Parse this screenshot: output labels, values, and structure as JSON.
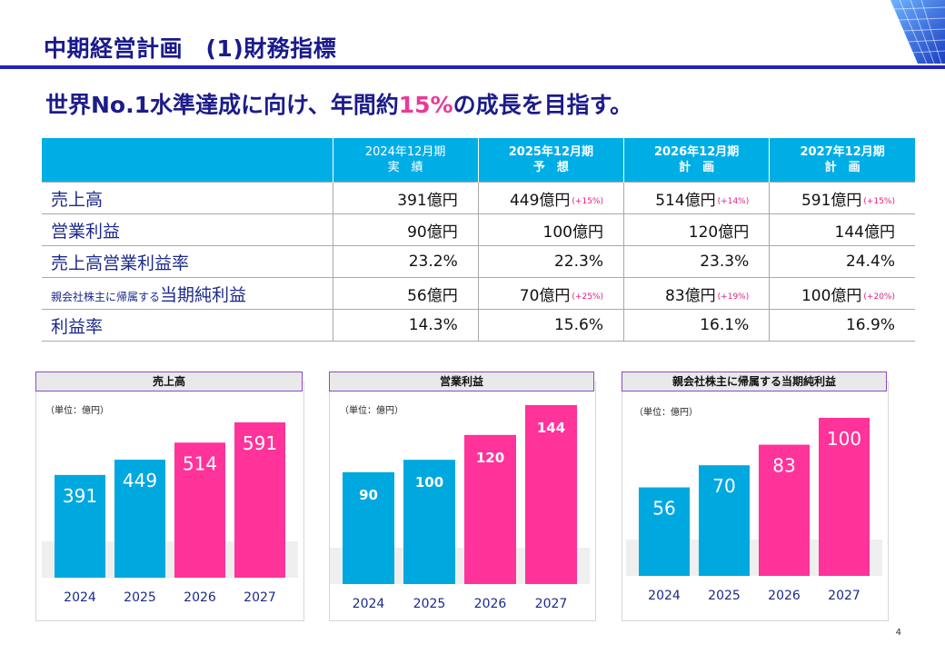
{
  "header": {
    "title": "中期経営計画　(1)財務指標"
  },
  "headline": {
    "prefix": "世界No.1水準達成に向け、年間約",
    "highlight": "15%",
    "suffix": "の成長を目指す。"
  },
  "colors": {
    "actual": "#00a8e0",
    "plan": "#ff3399",
    "header_bg": "#00aee6",
    "title_navy": "#1a1a8c",
    "accent_pink": "#e83a9a"
  },
  "table": {
    "columns": [
      {
        "line1": "2024年12月期",
        "line2": "実　績"
      },
      {
        "line1": "2025年12月期",
        "line2": "予　想"
      },
      {
        "line1": "2026年12月期",
        "line2": "計　画"
      },
      {
        "line1": "2027年12月期",
        "line2": "計　画"
      }
    ],
    "rows": [
      {
        "label": "売上高",
        "values": [
          "391億円",
          "449億円",
          "514億円",
          "591億円"
        ],
        "growth": [
          "",
          "(+15%)",
          "(+14%)",
          "(+15%)"
        ]
      },
      {
        "label": "営業利益",
        "values": [
          "90億円",
          "100億円",
          "120億円",
          "144億円"
        ],
        "growth": [
          "",
          "",
          "",
          ""
        ]
      },
      {
        "label": "売上高営業利益率",
        "values": [
          "23.2%",
          "22.3%",
          "23.3%",
          "24.4%"
        ],
        "growth": [
          "",
          "",
          "",
          ""
        ]
      },
      {
        "label_small": "親会社株主に帰属する",
        "label": "当期純利益",
        "values": [
          "56億円",
          "70億円",
          "83億円",
          "100億円"
        ],
        "growth": [
          "",
          "(+25%)",
          "(+19%)",
          "(+20%)"
        ]
      },
      {
        "label": "利益率",
        "values": [
          "14.3%",
          "15.6%",
          "16.1%",
          "16.9%"
        ],
        "growth": [
          "",
          "",
          "",
          ""
        ]
      }
    ]
  },
  "chart_data": [
    {
      "type": "bar",
      "title": "売上高",
      "unit": "（単位：億円）",
      "categories": [
        "2024",
        "2025",
        "2026",
        "2027"
      ],
      "values": [
        391,
        449,
        514,
        591
      ],
      "value_labels": [
        "391",
        "449",
        "514",
        "591"
      ],
      "bar_colors": [
        "#00a8e0",
        "#00a8e0",
        "#ff3399",
        "#ff3399"
      ]
    },
    {
      "type": "bar",
      "title": "営業利益",
      "unit": "（単位：億円）",
      "categories": [
        "2024",
        "2025",
        "2026",
        "2027"
      ],
      "values": [
        90,
        100,
        120,
        144
      ],
      "value_labels": [
        "90",
        "100",
        "120",
        "144"
      ],
      "bar_colors": [
        "#00a8e0",
        "#00a8e0",
        "#ff3399",
        "#ff3399"
      ]
    },
    {
      "type": "bar",
      "title": "親会社株主に帰属する当期純利益",
      "unit": "（単位：億円）",
      "categories": [
        "2024",
        "2025",
        "2026",
        "2027"
      ],
      "values": [
        56,
        70,
        83,
        100
      ],
      "value_labels": [
        "56",
        "70",
        "83",
        "100"
      ],
      "bar_colors": [
        "#00a8e0",
        "#00a8e0",
        "#ff3399",
        "#ff3399"
      ]
    }
  ],
  "page_number": "4"
}
